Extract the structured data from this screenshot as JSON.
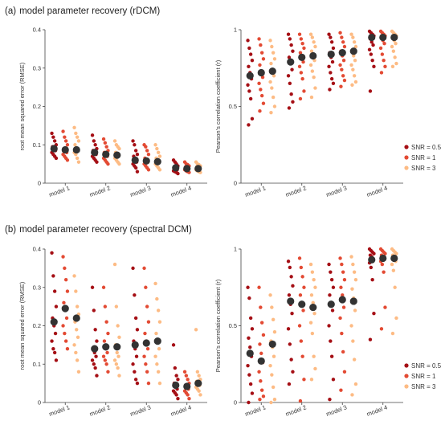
{
  "panels": [
    {
      "letter": "(a)",
      "title": "model parameter recovery (rDCM)"
    },
    {
      "letter": "(b)",
      "title": "model parameter recovery (spectral DCM)"
    }
  ],
  "legend": {
    "placement": "right",
    "entries": [
      "SNR = 0.5",
      "SNR = 1",
      "SNR = 3"
    ]
  },
  "colors": {
    "SNR = 0.5": "#a50f15",
    "SNR = 1": "#e34a33",
    "SNR = 3": "#fdbb84",
    "mean": "#333333",
    "axis": "#444444"
  },
  "chart_data": [
    {
      "type": "scatter",
      "title": "model parameter recovery (rDCM)",
      "ylabel": "root mean squared error (RMSE)",
      "xlabel": "",
      "categories": [
        "model 1",
        "model 2",
        "model 3",
        "model 4"
      ],
      "ylim": [
        0,
        0.4
      ],
      "yticks": [
        "0",
        "0.1",
        "0.2",
        "0.3",
        "0.4"
      ],
      "ytick_values": [
        0,
        0.1,
        0.2,
        0.3,
        0.4
      ],
      "grid": false,
      "series": [
        {
          "name": "SNR = 0.5",
          "means": [
            0.09,
            0.08,
            0.06,
            0.04
          ],
          "points": [
            [
              0.13,
              0.12,
              0.11,
              0.1,
              0.095,
              0.09,
              0.085,
              0.08,
              0.075,
              0.07,
              0.065
            ],
            [
              0.125,
              0.11,
              0.1,
              0.09,
              0.085,
              0.08,
              0.075,
              0.07,
              0.065,
              0.06,
              0.055
            ],
            [
              0.11,
              0.1,
              0.085,
              0.075,
              0.07,
              0.06,
              0.055,
              0.05,
              0.045,
              0.04,
              0.03
            ],
            [
              0.06,
              0.055,
              0.05,
              0.045,
              0.04,
              0.038,
              0.035,
              0.032,
              0.03,
              0.028,
              0.025
            ]
          ]
        },
        {
          "name": "SNR = 1",
          "means": [
            0.087,
            0.075,
            0.058,
            0.038
          ],
          "points": [
            [
              0.135,
              0.12,
              0.11,
              0.1,
              0.09,
              0.085,
              0.08,
              0.075,
              0.07,
              0.065,
              0.06
            ],
            [
              0.115,
              0.105,
              0.095,
              0.085,
              0.08,
              0.075,
              0.07,
              0.065,
              0.06,
              0.055,
              0.05
            ],
            [
              0.1,
              0.095,
              0.085,
              0.075,
              0.065,
              0.06,
              0.055,
              0.05,
              0.045,
              0.04,
              0.035
            ],
            [
              0.055,
              0.05,
              0.048,
              0.045,
              0.042,
              0.04,
              0.038,
              0.035,
              0.032,
              0.03,
              0.028
            ]
          ]
        },
        {
          "name": "SNR = 3",
          "means": [
            0.087,
            0.073,
            0.056,
            0.038
          ],
          "points": [
            [
              0.145,
              0.13,
              0.12,
              0.11,
              0.1,
              0.09,
              0.085,
              0.08,
              0.075,
              0.065,
              0.055
            ],
            [
              0.11,
              0.1,
              0.095,
              0.09,
              0.08,
              0.075,
              0.07,
              0.065,
              0.06,
              0.055,
              0.05
            ],
            [
              0.1,
              0.09,
              0.08,
              0.07,
              0.065,
              0.06,
              0.055,
              0.05,
              0.045,
              0.04,
              0.035
            ],
            [
              0.055,
              0.05,
              0.048,
              0.045,
              0.042,
              0.04,
              0.038,
              0.035,
              0.032,
              0.03,
              0.028
            ]
          ]
        }
      ]
    },
    {
      "type": "scatter",
      "title": "model parameter recovery (rDCM)",
      "ylabel": "Pearson's correlation coefficient (r)",
      "xlabel": "",
      "categories": [
        "model 1",
        "model 2",
        "model 3",
        "model 4"
      ],
      "ylim": [
        0,
        1
      ],
      "yticks": [
        "0",
        "0.5",
        "1"
      ],
      "ytick_values": [
        0,
        0.5,
        1
      ],
      "grid": false,
      "series": [
        {
          "name": "SNR = 0.5",
          "means": [
            0.7,
            0.79,
            0.84,
            0.95
          ],
          "points": [
            [
              0.93,
              0.88,
              0.84,
              0.8,
              0.76,
              0.72,
              0.68,
              0.64,
              0.6,
              0.55,
              0.42,
              0.38
            ],
            [
              0.97,
              0.94,
              0.9,
              0.86,
              0.82,
              0.78,
              0.74,
              0.7,
              0.65,
              0.58,
              0.53,
              0.49
            ],
            [
              0.97,
              0.95,
              0.92,
              0.88,
              0.85,
              0.82,
              0.79,
              0.76,
              0.72,
              0.68,
              0.65,
              0.61
            ],
            [
              0.99,
              0.98,
              0.97,
              0.96,
              0.94,
              0.92,
              0.9,
              0.87,
              0.84,
              0.8,
              0.76,
              0.6
            ]
          ]
        },
        {
          "name": "SNR = 1",
          "means": [
            0.72,
            0.82,
            0.85,
            0.95
          ],
          "points": [
            [
              0.94,
              0.9,
              0.85,
              0.81,
              0.77,
              0.73,
              0.69,
              0.65,
              0.61,
              0.57,
              0.52,
              0.47
            ],
            [
              0.97,
              0.94,
              0.91,
              0.88,
              0.85,
              0.82,
              0.79,
              0.76,
              0.72,
              0.68,
              0.6,
              0.55
            ],
            [
              0.98,
              0.95,
              0.92,
              0.89,
              0.86,
              0.83,
              0.8,
              0.77,
              0.74,
              0.7,
              0.67,
              0.63
            ],
            [
              0.99,
              0.98,
              0.97,
              0.96,
              0.95,
              0.93,
              0.91,
              0.88,
              0.84,
              0.8,
              0.76,
              0.72
            ]
          ]
        },
        {
          "name": "SNR = 3",
          "means": [
            0.73,
            0.83,
            0.86,
            0.95
          ],
          "points": [
            [
              0.93,
              0.89,
              0.85,
              0.81,
              0.78,
              0.74,
              0.7,
              0.66,
              0.62,
              0.56,
              0.5,
              0.46
            ],
            [
              0.97,
              0.95,
              0.92,
              0.89,
              0.86,
              0.83,
              0.8,
              0.77,
              0.73,
              0.69,
              0.62,
              0.56
            ],
            [
              0.97,
              0.95,
              0.92,
              0.89,
              0.86,
              0.83,
              0.8,
              0.77,
              0.74,
              0.7,
              0.66,
              0.64
            ],
            [
              0.99,
              0.98,
              0.97,
              0.96,
              0.95,
              0.93,
              0.91,
              0.89,
              0.86,
              0.82,
              0.78,
              0.76
            ]
          ]
        }
      ]
    },
    {
      "type": "scatter",
      "title": "model parameter recovery (spectral DCM)",
      "ylabel": "root mean squared error (RMSE)",
      "xlabel": "",
      "categories": [
        "model 1",
        "model 2",
        "model 3",
        "model 4"
      ],
      "ylim": [
        0,
        0.4
      ],
      "yticks": [
        "0",
        "0.1",
        "0.2",
        "0.3",
        "0.4"
      ],
      "ytick_values": [
        0,
        0.1,
        0.2,
        0.3,
        0.4
      ],
      "grid": false,
      "series": [
        {
          "name": "SNR = 0.5",
          "means": [
            0.21,
            0.14,
            0.15,
            0.045
          ],
          "points": [
            [
              0.39,
              0.33,
              0.29,
              0.25,
              0.22,
              0.2,
              0.18,
              0.16,
              0.14,
              0.13,
              0.11
            ],
            [
              0.3,
              0.24,
              0.19,
              0.16,
              0.14,
              0.13,
              0.12,
              0.11,
              0.1,
              0.09,
              0.07
            ],
            [
              0.35,
              0.28,
              0.22,
              0.19,
              0.16,
              0.14,
              0.12,
              0.1,
              0.08,
              0.06,
              0.05
            ],
            [
              0.15,
              0.09,
              0.07,
              0.06,
              0.05,
              0.04,
              0.035,
              0.03,
              0.025,
              0.02,
              0.01
            ]
          ]
        },
        {
          "name": "SNR = 1",
          "means": [
            0.245,
            0.145,
            0.155,
            0.042
          ],
          "points": [
            [
              0.38,
              0.35,
              0.32,
              0.29,
              0.26,
              0.24,
              0.22,
              0.2,
              0.18,
              0.16,
              0.14
            ],
            [
              0.3,
              0.25,
              0.21,
              0.18,
              0.16,
              0.14,
              0.13,
              0.12,
              0.11,
              0.1,
              0.08
            ],
            [
              0.35,
              0.3,
              0.25,
              0.21,
              0.18,
              0.16,
              0.14,
              0.12,
              0.1,
              0.08,
              0.05
            ],
            [
              0.08,
              0.07,
              0.06,
              0.05,
              0.045,
              0.04,
              0.035,
              0.03,
              0.025,
              0.02,
              0.01
            ]
          ]
        },
        {
          "name": "SNR = 3",
          "means": [
            0.22,
            0.145,
            0.16,
            0.05
          ],
          "points": [
            [
              0.33,
              0.29,
              0.25,
              0.23,
              0.21,
              0.19,
              0.17,
              0.15,
              0.13,
              0.11,
              0.08
            ],
            [
              0.36,
              0.25,
              0.2,
              0.17,
              0.15,
              0.13,
              0.12,
              0.11,
              0.1,
              0.09,
              0.07
            ],
            [
              0.31,
              0.27,
              0.24,
              0.21,
              0.18,
              0.16,
              0.14,
              0.12,
              0.1,
              0.08,
              0.05
            ],
            [
              0.19,
              0.08,
              0.07,
              0.06,
              0.055,
              0.05,
              0.045,
              0.04,
              0.035,
              0.03,
              0.02
            ]
          ]
        }
      ]
    },
    {
      "type": "scatter",
      "title": "model parameter recovery (spectral DCM)",
      "ylabel": "Pearson's correlation coefficient (r)",
      "xlabel": "",
      "categories": [
        "model 1",
        "model 2",
        "model 3",
        "model 4"
      ],
      "ylim": [
        0,
        1
      ],
      "yticks": [
        "0",
        "0.5",
        "1"
      ],
      "ytick_values": [
        0,
        0.5,
        1
      ],
      "grid": false,
      "series": [
        {
          "name": "SNR = 0.5",
          "means": [
            0.32,
            0.66,
            0.64,
            0.93
          ],
          "points": [
            [
              0.75,
              0.68,
              0.55,
              0.48,
              0.42,
              0.36,
              0.3,
              0.24,
              0.18,
              0.12,
              0.06,
              0.0
            ],
            [
              0.92,
              0.88,
              0.82,
              0.76,
              0.7,
              0.64,
              0.58,
              0.48,
              0.38,
              0.28,
              0.2,
              0.12
            ],
            [
              0.9,
              0.85,
              0.8,
              0.75,
              0.7,
              0.65,
              0.6,
              0.5,
              0.4,
              0.3,
              0.15,
              0.02
            ],
            [
              1.0,
              0.99,
              0.98,
              0.97,
              0.96,
              0.95,
              0.93,
              0.91,
              0.88,
              0.8,
              0.58,
              0.41
            ]
          ]
        },
        {
          "name": "SNR = 1",
          "means": [
            0.27,
            0.64,
            0.67,
            0.94
          ],
          "points": [
            [
              0.75,
              0.62,
              0.52,
              0.44,
              0.38,
              0.32,
              0.26,
              0.2,
              0.14,
              0.08,
              0.04,
              0.02
            ],
            [
              0.94,
              0.88,
              0.82,
              0.75,
              0.7,
              0.65,
              0.6,
              0.5,
              0.4,
              0.3,
              0.15,
              0.01
            ],
            [
              0.94,
              0.9,
              0.85,
              0.8,
              0.75,
              0.7,
              0.62,
              0.55,
              0.45,
              0.33,
              0.2,
              0.08
            ],
            [
              1.0,
              0.99,
              0.98,
              0.97,
              0.96,
              0.95,
              0.94,
              0.92,
              0.9,
              0.85,
              0.62,
              0.48
            ]
          ]
        },
        {
          "name": "SNR = 3",
          "means": [
            0.38,
            0.62,
            0.66,
            0.94
          ],
          "points": [
            [
              0.7,
              0.62,
              0.54,
              0.46,
              0.4,
              0.36,
              0.3,
              0.24,
              0.18,
              0.1,
              0.02,
              0.0
            ],
            [
              0.9,
              0.85,
              0.8,
              0.75,
              0.7,
              0.65,
              0.58,
              0.52,
              0.45,
              0.3,
              0.22,
              0.15
            ],
            [
              0.95,
              0.9,
              0.85,
              0.8,
              0.74,
              0.68,
              0.6,
              0.5,
              0.4,
              0.28,
              0.12,
              0.05
            ],
            [
              1.0,
              0.99,
              0.98,
              0.97,
              0.96,
              0.94,
              0.92,
              0.9,
              0.86,
              0.75,
              0.55,
              0.45
            ]
          ]
        }
      ]
    }
  ]
}
